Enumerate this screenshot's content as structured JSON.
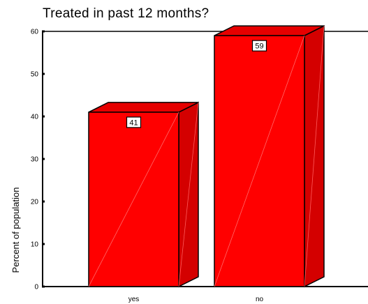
{
  "chart_data": {
    "type": "bar",
    "title": "Treated in past 12 months?",
    "xlabel": "",
    "ylabel": "Percent of population",
    "categories": [
      "yes",
      "no"
    ],
    "values": [
      41,
      59
    ],
    "data_labels": [
      "41",
      "59"
    ],
    "ylim": [
      0,
      60
    ],
    "yticks": [
      0,
      10,
      20,
      30,
      40,
      50,
      60
    ],
    "grid": false,
    "three_d": true,
    "bar_color": "#ff0000",
    "bar_top_color": "#e60000",
    "bar_side_color": "#d40000",
    "outline_color": "#000000"
  }
}
